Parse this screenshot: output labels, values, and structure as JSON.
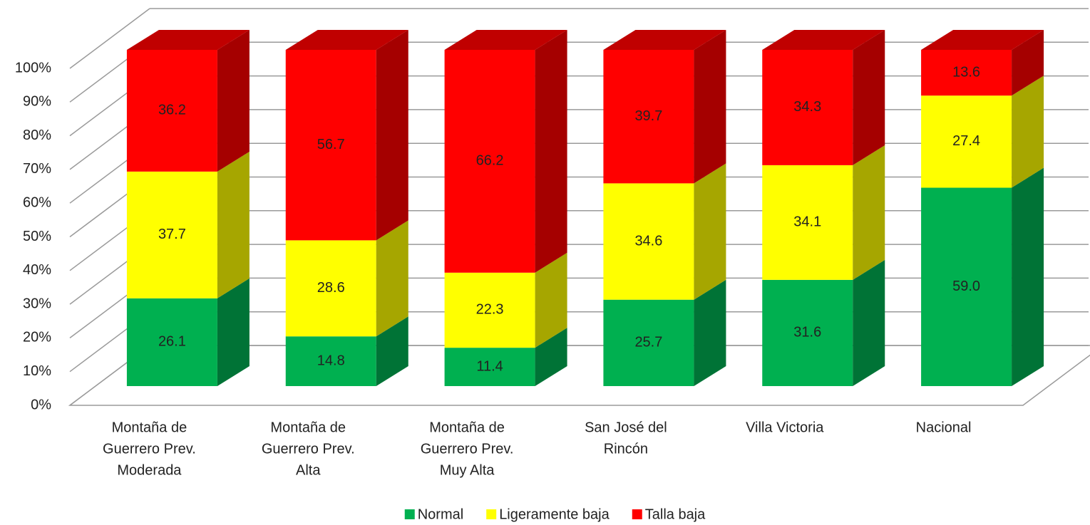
{
  "chart_data": {
    "type": "bar",
    "stacking": "percent",
    "three_d": true,
    "categories": [
      [
        "Montaña de",
        "Guerrero Prev.",
        "Moderada"
      ],
      [
        "Montaña de",
        "Guerrero Prev.",
        "Alta"
      ],
      [
        "Montaña de",
        "Guerrero Prev.",
        "Muy Alta"
      ],
      [
        "San José del",
        "Rincón"
      ],
      [
        "Villa Victoria"
      ],
      [
        "Nacional"
      ]
    ],
    "series": [
      {
        "name": "Normal",
        "color": "#00b050",
        "side_color": "#007336",
        "top_color": "#00913f",
        "values": [
          26.1,
          14.8,
          11.4,
          25.7,
          31.6,
          59.0
        ],
        "value_labels": [
          "26.1",
          "14.8",
          "11.4",
          "25.7",
          "31.6",
          "59.0"
        ]
      },
      {
        "name": "Ligeramente baja",
        "color": "#ffff00",
        "side_color": "#a6a600",
        "top_color": "#d4d400",
        "values": [
          37.7,
          28.6,
          22.3,
          34.6,
          34.1,
          27.4
        ],
        "value_labels": [
          "37.7",
          "28.6",
          "22.3",
          "34.6",
          "34.1",
          "27.4"
        ]
      },
      {
        "name": "Talla baja",
        "color": "#ff0000",
        "side_color": "#a50000",
        "top_color": "#c00000",
        "values": [
          36.2,
          56.7,
          66.2,
          39.7,
          34.3,
          13.6
        ],
        "value_labels": [
          "36.2",
          "56.7",
          "66.2",
          "39.7",
          "34.3",
          "13.6"
        ]
      }
    ],
    "ylim": [
      0,
      100
    ],
    "yticks": [
      {
        "value": 0,
        "label": "0%"
      },
      {
        "value": 10,
        "label": "10%"
      },
      {
        "value": 20,
        "label": "20%"
      },
      {
        "value": 30,
        "label": "30%"
      },
      {
        "value": 40,
        "label": "40%"
      },
      {
        "value": 50,
        "label": "50%"
      },
      {
        "value": 60,
        "label": "60%"
      },
      {
        "value": 70,
        "label": "70%"
      },
      {
        "value": 80,
        "label": "80%"
      },
      {
        "value": 90,
        "label": "90%"
      },
      {
        "value": 100,
        "label": "100%"
      }
    ],
    "grid": true,
    "legend": "bottom"
  }
}
